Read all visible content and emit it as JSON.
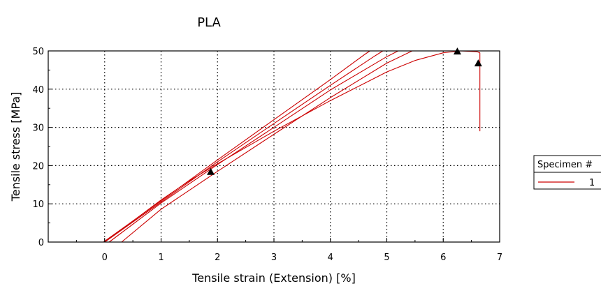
{
  "chart_data": {
    "type": "line",
    "title": "PLA",
    "xlabel": "Tensile strain (Extension) [%]",
    "ylabel": "Tensile stress [MPa]",
    "xlim": [
      -1,
      7
    ],
    "ylim": [
      0,
      50
    ],
    "xticks": [
      0,
      1,
      2,
      3,
      4,
      5,
      6,
      7
    ],
    "yticks": [
      0,
      10,
      20,
      30,
      40,
      50
    ],
    "grid": true,
    "legend": {
      "title": "Specimen #",
      "placement": "right",
      "entries": [
        "1"
      ]
    },
    "series_color": "#cc0000",
    "series": [
      {
        "points": [
          [
            0.0,
            0
          ],
          [
            0.5,
            5.5
          ],
          [
            1.0,
            11
          ],
          [
            1.5,
            16
          ],
          [
            2.0,
            20.5
          ],
          [
            3.0,
            29
          ],
          [
            4.0,
            37
          ],
          [
            4.6,
            41.5
          ],
          [
            5.0,
            44.5
          ],
          [
            5.5,
            47.5
          ],
          [
            6.0,
            49.5
          ],
          [
            6.3,
            50
          ],
          [
            6.6,
            49.8
          ],
          [
            6.65,
            49.5
          ],
          [
            6.65,
            29
          ]
        ]
      },
      {
        "points": [
          [
            -0.02,
            0
          ],
          [
            1.0,
            10.8
          ],
          [
            2.0,
            21.5
          ],
          [
            3.0,
            32
          ],
          [
            4.0,
            42.5
          ],
          [
            4.6,
            49
          ],
          [
            4.7,
            50
          ]
        ]
      },
      {
        "points": [
          [
            0.0,
            0
          ],
          [
            1.0,
            10.5
          ],
          [
            2.0,
            21
          ],
          [
            3.0,
            31
          ],
          [
            4.0,
            41
          ],
          [
            4.8,
            48.8
          ],
          [
            4.93,
            50
          ]
        ]
      },
      {
        "points": [
          [
            0.08,
            0
          ],
          [
            1.0,
            10.2
          ],
          [
            2.0,
            20.3
          ],
          [
            3.0,
            30
          ],
          [
            4.0,
            39.8
          ],
          [
            5.0,
            48.5
          ],
          [
            5.2,
            50
          ]
        ]
      },
      {
        "points": [
          [
            0.3,
            0
          ],
          [
            1.0,
            8.6
          ],
          [
            2.0,
            18.5
          ],
          [
            3.0,
            28.2
          ],
          [
            4.0,
            37.8
          ],
          [
            5.0,
            46.8
          ],
          [
            5.45,
            50
          ]
        ]
      }
    ],
    "markers": [
      [
        1.88,
        18.3
      ],
      [
        6.25,
        49.8
      ],
      [
        6.62,
        46.7
      ]
    ]
  }
}
